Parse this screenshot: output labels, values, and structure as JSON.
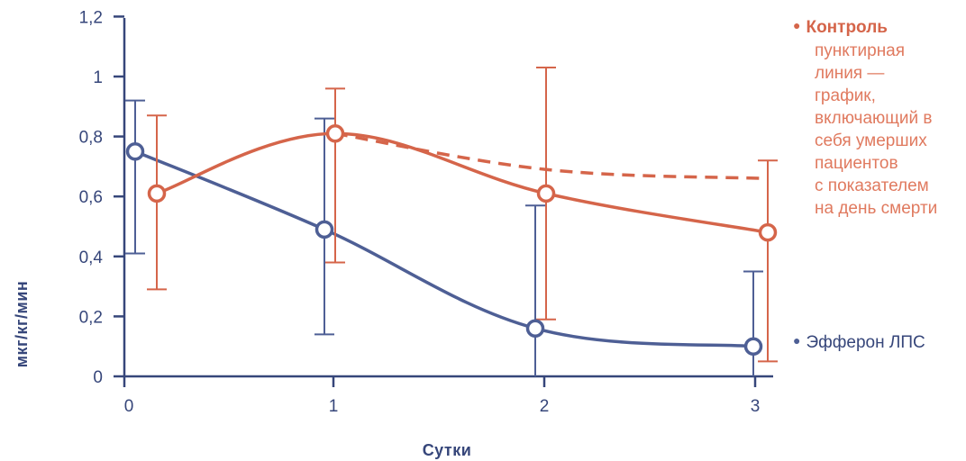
{
  "chart_data": {
    "type": "line",
    "xlabel": "Сутки",
    "ylabel": "мкг/кг/мин",
    "xlim": [
      0,
      3
    ],
    "ylim": [
      0,
      1.2
    ],
    "x_ticks": [
      "0",
      "1",
      "2",
      "3"
    ],
    "y_ticks": [
      "0",
      "0,2",
      "0,4",
      "0,6",
      "0,8",
      "1",
      "1,2"
    ],
    "grid": false,
    "legend_position": "right",
    "series": [
      {
        "name": "Контроль",
        "color": "#d5654a",
        "x": [
          0,
          1,
          2,
          3
        ],
        "y": [
          0.61,
          0.81,
          0.61,
          0.48
        ],
        "err_low": [
          0.29,
          0.38,
          0.19,
          0.05
        ],
        "err_high": [
          0.87,
          0.96,
          1.03,
          0.72
        ],
        "note": "пунктирная\nлиния —\nграфик,\nвключающий в\nсебя умерших\nпациентов\nс показателем\nна день смерти",
        "dashed_y": [
          0.81,
          0.69,
          0.66
        ]
      },
      {
        "name": "Эфферон ЛПС",
        "color": "#4e5f95",
        "x": [
          0,
          1,
          2,
          3
        ],
        "y": [
          0.75,
          0.49,
          0.16,
          0.1
        ],
        "err_low": [
          0.41,
          0.14,
          0.0,
          0.0
        ],
        "err_high": [
          0.92,
          0.86,
          0.57,
          0.35
        ]
      }
    ]
  }
}
